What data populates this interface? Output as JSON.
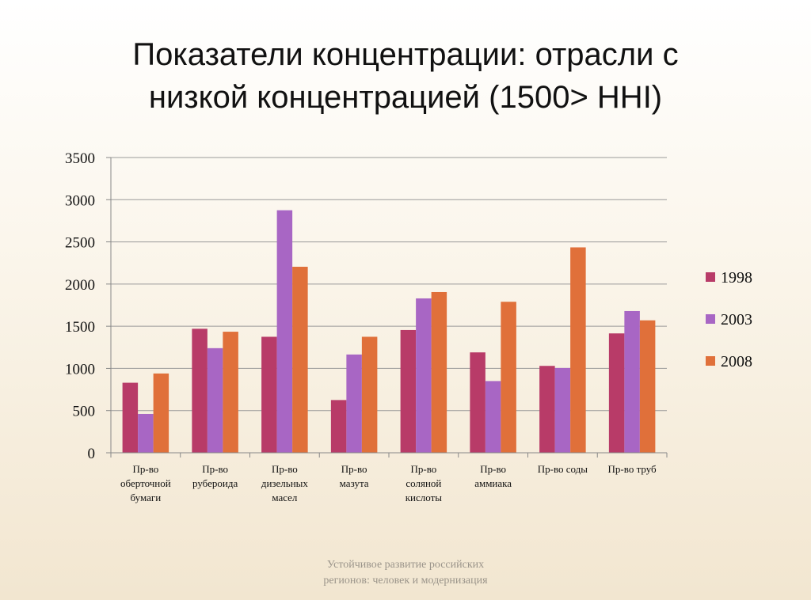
{
  "slide": {
    "title_line1": "Показатели концентрации: отрасли с",
    "title_line2": "низкой концентрацией (1500> HHI)",
    "footer_line1": "Устойчивое развитие российских",
    "footer_line2": "регионов: человек и модернизация"
  },
  "chart_data": {
    "type": "bar",
    "title": "",
    "xlabel": "",
    "ylabel": "",
    "ylim": [
      0,
      3500
    ],
    "yticks": [
      0,
      500,
      1000,
      1500,
      2000,
      2500,
      3000,
      3500
    ],
    "grid": true,
    "legend_position": "right",
    "categories": [
      [
        "Пр-во",
        "оберточной",
        "бумаги"
      ],
      [
        "Пр-во",
        "рубероида"
      ],
      [
        "Пр-во",
        "дизельных",
        "масел"
      ],
      [
        "Пр-во",
        "мазута"
      ],
      [
        "Пр-во",
        "соляной",
        "кислоты"
      ],
      [
        "Пр-во",
        "аммиака"
      ],
      [
        "Пр-во соды"
      ],
      [
        "Пр-во труб"
      ]
    ],
    "series": [
      {
        "name": "1998",
        "color": "#b83b68",
        "values": [
          830,
          1470,
          1375,
          625,
          1455,
          1190,
          1030,
          1415
        ]
      },
      {
        "name": "2003",
        "color": "#a866c4",
        "values": [
          460,
          1240,
          2875,
          1165,
          1830,
          850,
          1005,
          1680
        ]
      },
      {
        "name": "2008",
        "color": "#e0703a",
        "values": [
          940,
          1435,
          2205,
          1375,
          1905,
          1790,
          2435,
          1570
        ]
      }
    ]
  }
}
